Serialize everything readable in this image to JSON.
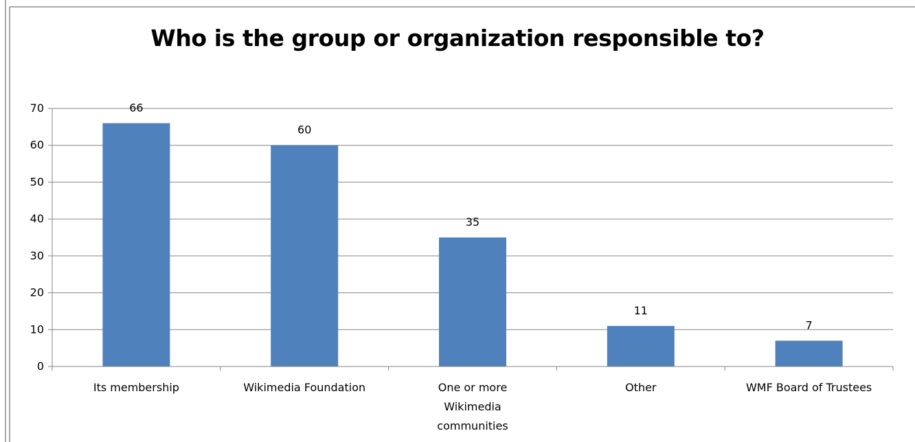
{
  "chart_data": {
    "type": "bar",
    "title": "Who is the group or organization responsible to?",
    "categories": [
      [
        "Its membership"
      ],
      [
        "Wikimedia Foundation"
      ],
      [
        "One or more",
        "Wikimedia",
        "communities"
      ],
      [
        "Other"
      ],
      [
        "WMF Board of Trustees"
      ]
    ],
    "values": [
      66,
      60,
      35,
      11,
      7
    ],
    "data_labels": [
      "66",
      "60",
      "35",
      "11",
      "7"
    ],
    "ylim": [
      0,
      70
    ],
    "yticks": [
      0,
      10,
      20,
      30,
      40,
      50,
      60,
      70
    ],
    "grid": true,
    "legend": "none",
    "colors": {
      "bar": "#4f81bd",
      "grid": "#868686",
      "frame": "#8c8c8c"
    }
  }
}
